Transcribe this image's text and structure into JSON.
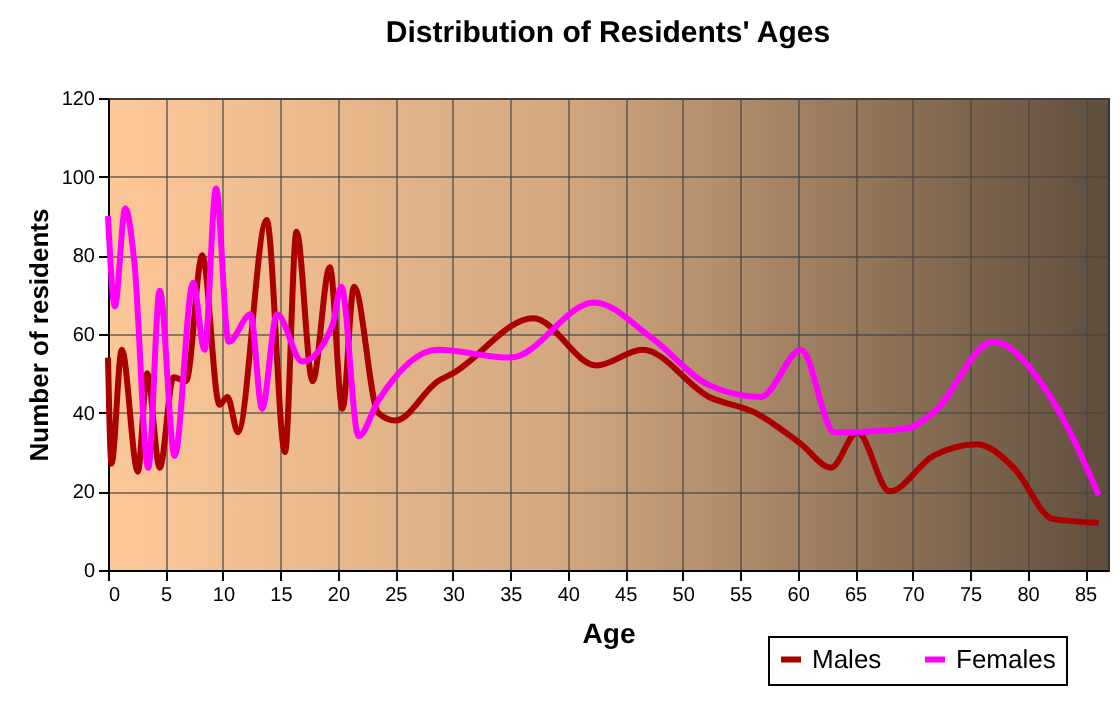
{
  "chart_data": {
    "type": "line",
    "title": "Distribution of Residents' Ages",
    "xlabel": "Age",
    "ylabel": "Number of residents",
    "xlim": [
      0,
      87
    ],
    "xticks": [
      0,
      5,
      10,
      15,
      20,
      25,
      30,
      35,
      40,
      45,
      50,
      55,
      60,
      65,
      70,
      75,
      80,
      85
    ],
    "ylim": [
      0,
      120
    ],
    "yticks": [
      0,
      20,
      40,
      60,
      80,
      100,
      120
    ],
    "grid": true,
    "legend": "bottom right",
    "series": [
      {
        "name": "Males",
        "color": "#aa0000",
        "x": [
          0,
          0.3,
          1.2,
          2.6,
          3.4,
          4.5,
          5.7,
          6.8,
          8.2,
          9.7,
          10.4,
          11.3,
          13.8,
          15.4,
          16.4,
          17.8,
          19.3,
          20.4,
          21.4,
          23.5,
          25,
          28.7,
          30,
          37,
          42.5,
          46.5,
          52.3,
          56.3,
          60.3,
          62.9,
          65.2,
          68,
          71.8,
          75.6,
          78.8,
          82.2,
          86.2
        ],
        "values": [
          54,
          27,
          56,
          25,
          50,
          26,
          49,
          48,
          80,
          42,
          44,
          35,
          89,
          30,
          86,
          48,
          77,
          41,
          72,
          40,
          38,
          48,
          50,
          64,
          52,
          56,
          44,
          40,
          32,
          26,
          35,
          20,
          29,
          32,
          26,
          13,
          12
        ]
      },
      {
        "name": "Females",
        "color": "#ff00ff",
        "x": [
          0,
          0.6,
          1.5,
          2.3,
          3.5,
          4.5,
          5.8,
          7.4,
          8.4,
          9.4,
          10.5,
          12.4,
          13.4,
          14.7,
          16.9,
          19.5,
          20.3,
          21.8,
          23.5,
          28.7,
          35,
          42.3,
          47.3,
          52.3,
          56.8,
          60.3,
          63.2,
          69.5,
          71.8,
          77,
          82.2,
          86.2
        ],
        "values": [
          90,
          67,
          92,
          78,
          26,
          71,
          29,
          73,
          56,
          97,
          58,
          65,
          41,
          65,
          53,
          62,
          72,
          34,
          43,
          56,
          54,
          68,
          59,
          47,
          44,
          56,
          35,
          36,
          40,
          58,
          43,
          19
        ]
      }
    ]
  }
}
